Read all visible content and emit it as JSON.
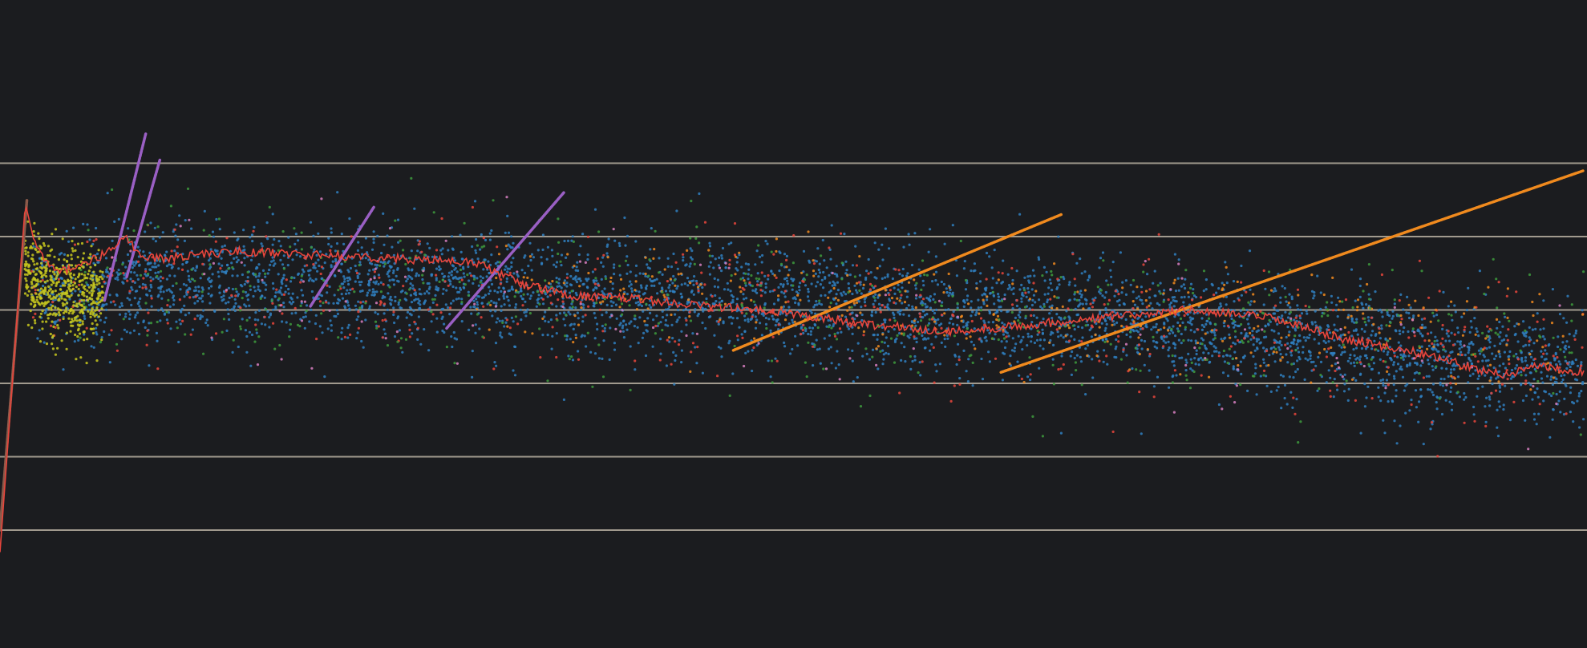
{
  "colors": {
    "background": "#1b1c1f",
    "gridline": "#b9b1a2",
    "blue": "#2f7fbf",
    "red": "#e8453c",
    "orange": "#f08a1e",
    "green": "#3d9a3d",
    "pink": "#d77fc1",
    "purple": "#9a5fc4",
    "yellow": "#c8c81e",
    "brown": "#8c5a4a"
  },
  "chart_data": {
    "type": "scatter",
    "title": "",
    "xlabel": "",
    "ylabel": "",
    "xlim": [
      0,
      1
    ],
    "ylim": [
      0,
      6
    ],
    "grid": "horizontal",
    "gridlines_y": [
      0,
      1,
      2,
      3,
      4,
      5
    ],
    "legend": "none",
    "series": [
      {
        "color": "blue",
        "kind": "cloud",
        "trend_x": [
          0.02,
          0.1,
          0.2,
          0.3,
          0.4,
          0.5,
          0.6,
          0.7,
          0.8,
          0.9,
          1.0
        ],
        "trend_y": [
          3.2,
          3.35,
          3.4,
          3.3,
          3.2,
          3.1,
          2.95,
          2.9,
          2.65,
          2.35,
          2.2
        ],
        "spread": 0.38,
        "n": 4200
      },
      {
        "color": "red",
        "kind": "cloud",
        "trend_x": [
          0.02,
          0.3,
          0.45,
          0.6,
          1.0
        ],
        "trend_y": [
          3.3,
          3.2,
          3.15,
          3.0,
          2.3
        ],
        "spread": 0.45,
        "n": 520
      },
      {
        "color": "orange",
        "kind": "cloud",
        "trend_x": [
          0.3,
          0.35,
          0.4,
          0.45,
          0.6,
          1.0
        ],
        "trend_y": [
          3.2,
          3.1,
          3.15,
          3.2,
          3.0,
          2.5
        ],
        "spread": 0.35,
        "n": 360
      },
      {
        "color": "green",
        "kind": "cloud",
        "trend_x": [
          0.05,
          0.3,
          0.5,
          0.8,
          1.0
        ],
        "trend_y": [
          3.4,
          3.3,
          3.05,
          2.65,
          2.4
        ],
        "spread": 0.5,
        "n": 520
      },
      {
        "color": "pink",
        "kind": "cloud",
        "trend_x": [
          0.05,
          0.5,
          0.8,
          1.0
        ],
        "trend_y": [
          3.3,
          3.1,
          2.6,
          2.3
        ],
        "spread": 0.5,
        "n": 120
      },
      {
        "color": "yellow",
        "kind": "cloud",
        "trend_x": [
          0.015,
          0.03,
          0.05,
          0.065
        ],
        "trend_y": [
          3.6,
          3.3,
          3.2,
          3.2
        ],
        "spread": 0.3,
        "n": 520
      },
      {
        "color": "orange",
        "kind": "line",
        "x": [
          0.463,
          0.67
        ],
        "y": [
          2.45,
          4.3
        ]
      },
      {
        "color": "orange",
        "kind": "line",
        "x": [
          0.632,
          1.0
        ],
        "y": [
          2.15,
          4.9
        ]
      },
      {
        "color": "purple",
        "kind": "line",
        "x": [
          0.066,
          0.092
        ],
        "y": [
          3.13,
          5.4
        ]
      },
      {
        "color": "purple",
        "kind": "line",
        "x": [
          0.08,
          0.101
        ],
        "y": [
          3.45,
          5.05
        ]
      },
      {
        "color": "purple",
        "kind": "line",
        "x": [
          0.196,
          0.236
        ],
        "y": [
          3.05,
          4.4
        ]
      },
      {
        "color": "purple",
        "kind": "line",
        "x": [
          0.282,
          0.356
        ],
        "y": [
          2.75,
          4.6
        ]
      },
      {
        "color": "brown",
        "kind": "line",
        "x": [
          0.0,
          0.017
        ],
        "y": [
          0.0,
          4.5
        ]
      },
      {
        "color": "red",
        "kind": "rolling-mean",
        "x": [
          0.0,
          0.016,
          0.022,
          0.035,
          0.045,
          0.065,
          0.08,
          0.088,
          0.1,
          0.15,
          0.2,
          0.25,
          0.3,
          0.33,
          0.36,
          0.4,
          0.45,
          0.5,
          0.55,
          0.6,
          0.65,
          0.7,
          0.75,
          0.8,
          0.85,
          0.9,
          0.95,
          0.97,
          1.0
        ],
        "y": [
          -0.3,
          4.45,
          3.9,
          3.5,
          3.55,
          3.75,
          4.0,
          3.75,
          3.7,
          3.8,
          3.75,
          3.7,
          3.65,
          3.35,
          3.2,
          3.15,
          3.05,
          2.95,
          2.8,
          2.7,
          2.8,
          2.9,
          3.0,
          2.9,
          2.6,
          2.4,
          2.1,
          2.25,
          2.15
        ]
      }
    ]
  }
}
